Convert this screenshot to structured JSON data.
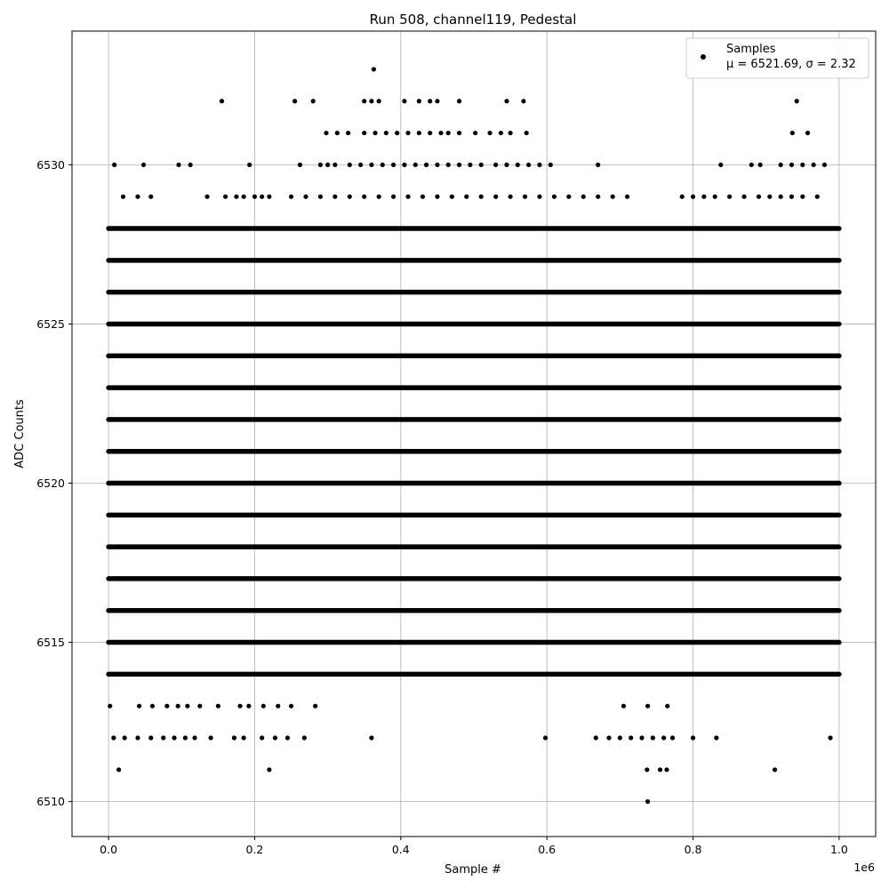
{
  "chart_data": {
    "type": "scatter",
    "title": "Run 508, channel119, Pedestal",
    "xlabel": "Sample #",
    "ylabel": "ADC Counts",
    "x_offset_label": "1e6",
    "xlim": [
      -50000,
      1050000
    ],
    "ylim": [
      6508.9,
      6534.2
    ],
    "xticks": [
      0,
      200000,
      400000,
      600000,
      800000,
      1000000
    ],
    "xtick_labels": [
      "0.0",
      "0.2",
      "0.4",
      "0.6",
      "0.8",
      "1.0"
    ],
    "yticks": [
      6510,
      6515,
      6520,
      6525,
      6530
    ],
    "ytick_labels": [
      "6510",
      "6515",
      "6520",
      "6525",
      "6530"
    ],
    "grid": true,
    "legend": {
      "position": "top-right",
      "entries": [
        "Samples",
        "μ = 6521.69, σ = 2.32"
      ]
    },
    "marker_color": "#000000",
    "series": [
      {
        "name": "Samples",
        "dense_levels": [
          {
            "y": 6528,
            "x_range": [
              0,
              1000000
            ]
          },
          {
            "y": 6527,
            "x_range": [
              0,
              1000000
            ]
          },
          {
            "y": 6526,
            "x_range": [
              0,
              1000000
            ]
          },
          {
            "y": 6525,
            "x_range": [
              0,
              1000000
            ]
          },
          {
            "y": 6524,
            "x_range": [
              0,
              1000000
            ]
          },
          {
            "y": 6523,
            "x_range": [
              0,
              1000000
            ]
          },
          {
            "y": 6522,
            "x_range": [
              0,
              1000000
            ]
          },
          {
            "y": 6521,
            "x_range": [
              0,
              1000000
            ]
          },
          {
            "y": 6520,
            "x_range": [
              0,
              1000000
            ]
          },
          {
            "y": 6519,
            "x_range": [
              0,
              1000000
            ]
          },
          {
            "y": 6518,
            "x_range": [
              0,
              1000000
            ]
          },
          {
            "y": 6517,
            "x_range": [
              0,
              1000000
            ]
          },
          {
            "y": 6516,
            "x_range": [
              0,
              1000000
            ]
          },
          {
            "y": 6515,
            "x_range": [
              0,
              1000000
            ]
          },
          {
            "y": 6514,
            "x_range": [
              0,
              1000000
            ]
          }
        ],
        "points": [
          [
            363000,
            6533
          ],
          [
            155000,
            6532
          ],
          [
            255000,
            6532
          ],
          [
            280000,
            6532
          ],
          [
            350000,
            6532
          ],
          [
            360000,
            6532
          ],
          [
            370000,
            6532
          ],
          [
            405000,
            6532
          ],
          [
            425000,
            6532
          ],
          [
            440000,
            6532
          ],
          [
            450000,
            6532
          ],
          [
            480000,
            6532
          ],
          [
            545000,
            6532
          ],
          [
            568000,
            6532
          ],
          [
            942000,
            6532
          ],
          [
            298000,
            6531
          ],
          [
            313000,
            6531
          ],
          [
            328000,
            6531
          ],
          [
            350000,
            6531
          ],
          [
            365000,
            6531
          ],
          [
            380000,
            6531
          ],
          [
            395000,
            6531
          ],
          [
            410000,
            6531
          ],
          [
            425000,
            6531
          ],
          [
            440000,
            6531
          ],
          [
            455000,
            6531
          ],
          [
            465000,
            6531
          ],
          [
            480000,
            6531
          ],
          [
            502000,
            6531
          ],
          [
            522000,
            6531
          ],
          [
            537000,
            6531
          ],
          [
            550000,
            6531
          ],
          [
            572000,
            6531
          ],
          [
            936000,
            6531
          ],
          [
            957000,
            6531
          ],
          [
            8000,
            6530
          ],
          [
            48000,
            6530
          ],
          [
            96000,
            6530
          ],
          [
            112000,
            6530
          ],
          [
            193000,
            6530
          ],
          [
            262000,
            6530
          ],
          [
            290000,
            6530
          ],
          [
            300000,
            6530
          ],
          [
            310000,
            6530
          ],
          [
            330000,
            6530
          ],
          [
            345000,
            6530
          ],
          [
            360000,
            6530
          ],
          [
            375000,
            6530
          ],
          [
            390000,
            6530
          ],
          [
            405000,
            6530
          ],
          [
            420000,
            6530
          ],
          [
            435000,
            6530
          ],
          [
            450000,
            6530
          ],
          [
            465000,
            6530
          ],
          [
            480000,
            6530
          ],
          [
            495000,
            6530
          ],
          [
            510000,
            6530
          ],
          [
            530000,
            6530
          ],
          [
            545000,
            6530
          ],
          [
            560000,
            6530
          ],
          [
            575000,
            6530
          ],
          [
            590000,
            6530
          ],
          [
            605000,
            6530
          ],
          [
            670000,
            6530
          ],
          [
            838000,
            6530
          ],
          [
            880000,
            6530
          ],
          [
            892000,
            6530
          ],
          [
            920000,
            6530
          ],
          [
            935000,
            6530
          ],
          [
            950000,
            6530
          ],
          [
            965000,
            6530
          ],
          [
            980000,
            6530
          ],
          [
            20000,
            6529
          ],
          [
            40000,
            6529
          ],
          [
            58000,
            6529
          ],
          [
            135000,
            6529
          ],
          [
            160000,
            6529
          ],
          [
            175000,
            6529
          ],
          [
            185000,
            6529
          ],
          [
            200000,
            6529
          ],
          [
            210000,
            6529
          ],
          [
            220000,
            6529
          ],
          [
            250000,
            6529
          ],
          [
            270000,
            6529
          ],
          [
            290000,
            6529
          ],
          [
            310000,
            6529
          ],
          [
            330000,
            6529
          ],
          [
            350000,
            6529
          ],
          [
            370000,
            6529
          ],
          [
            390000,
            6529
          ],
          [
            410000,
            6529
          ],
          [
            430000,
            6529
          ],
          [
            450000,
            6529
          ],
          [
            470000,
            6529
          ],
          [
            490000,
            6529
          ],
          [
            510000,
            6529
          ],
          [
            530000,
            6529
          ],
          [
            550000,
            6529
          ],
          [
            570000,
            6529
          ],
          [
            590000,
            6529
          ],
          [
            610000,
            6529
          ],
          [
            630000,
            6529
          ],
          [
            650000,
            6529
          ],
          [
            670000,
            6529
          ],
          [
            690000,
            6529
          ],
          [
            710000,
            6529
          ],
          [
            785000,
            6529
          ],
          [
            800000,
            6529
          ],
          [
            815000,
            6529
          ],
          [
            830000,
            6529
          ],
          [
            850000,
            6529
          ],
          [
            870000,
            6529
          ],
          [
            890000,
            6529
          ],
          [
            905000,
            6529
          ],
          [
            920000,
            6529
          ],
          [
            935000,
            6529
          ],
          [
            950000,
            6529
          ],
          [
            970000,
            6529
          ],
          [
            2000,
            6513
          ],
          [
            42000,
            6513
          ],
          [
            60000,
            6513
          ],
          [
            80000,
            6513
          ],
          [
            95000,
            6513
          ],
          [
            108000,
            6513
          ],
          [
            125000,
            6513
          ],
          [
            150000,
            6513
          ],
          [
            180000,
            6513
          ],
          [
            192000,
            6513
          ],
          [
            212000,
            6513
          ],
          [
            232000,
            6513
          ],
          [
            250000,
            6513
          ],
          [
            283000,
            6513
          ],
          [
            705000,
            6513
          ],
          [
            738000,
            6513
          ],
          [
            765000,
            6513
          ],
          [
            7000,
            6512
          ],
          [
            22000,
            6512
          ],
          [
            40000,
            6512
          ],
          [
            58000,
            6512
          ],
          [
            75000,
            6512
          ],
          [
            90000,
            6512
          ],
          [
            105000,
            6512
          ],
          [
            118000,
            6512
          ],
          [
            140000,
            6512
          ],
          [
            172000,
            6512
          ],
          [
            185000,
            6512
          ],
          [
            210000,
            6512
          ],
          [
            228000,
            6512
          ],
          [
            245000,
            6512
          ],
          [
            268000,
            6512
          ],
          [
            360000,
            6512
          ],
          [
            598000,
            6512
          ],
          [
            667000,
            6512
          ],
          [
            685000,
            6512
          ],
          [
            700000,
            6512
          ],
          [
            715000,
            6512
          ],
          [
            730000,
            6512
          ],
          [
            745000,
            6512
          ],
          [
            760000,
            6512
          ],
          [
            772000,
            6512
          ],
          [
            800000,
            6512
          ],
          [
            832000,
            6512
          ],
          [
            988000,
            6512
          ],
          [
            14000,
            6511
          ],
          [
            220000,
            6511
          ],
          [
            737000,
            6511
          ],
          [
            755000,
            6511
          ],
          [
            764000,
            6511
          ],
          [
            912000,
            6511
          ],
          [
            738000,
            6510
          ]
        ]
      }
    ]
  }
}
